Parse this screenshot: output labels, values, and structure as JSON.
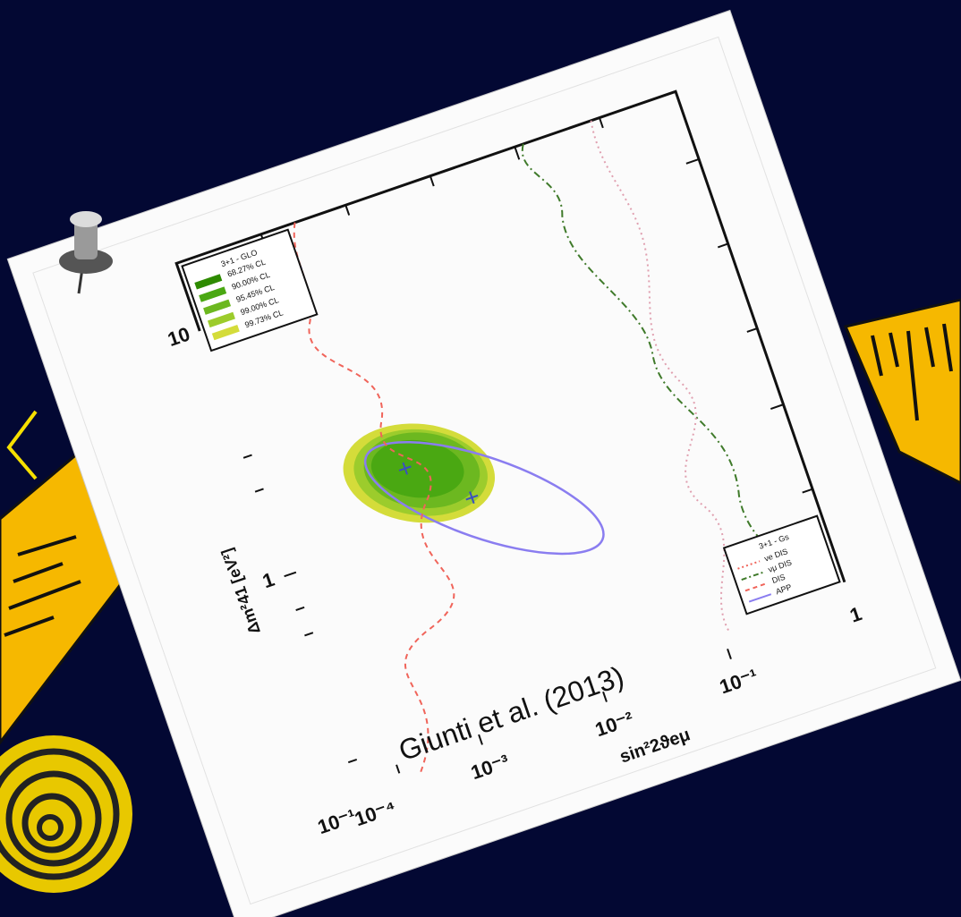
{
  "caption": "Giunti et al. (2013)",
  "axes": {
    "x_label": "sin²2ϑeμ",
    "y_label": "Δm²41 [eV²]",
    "x_ticks": [
      "10⁻⁴",
      "10⁻³",
      "10⁻²",
      "10⁻¹",
      "1"
    ],
    "y_ticks": [
      "10",
      "1",
      "10⁻¹"
    ]
  },
  "legend_global": {
    "title": "3+1 - GLO",
    "entries": [
      "68.27% CL",
      "90.00% CL",
      "95.45% CL",
      "99.00% CL",
      "99.73% CL"
    ]
  },
  "legend_constraints": {
    "title": "3+1 - Gs",
    "entries": [
      "νe DIS",
      "νμ DIS",
      "DIS",
      "APP"
    ]
  }
}
